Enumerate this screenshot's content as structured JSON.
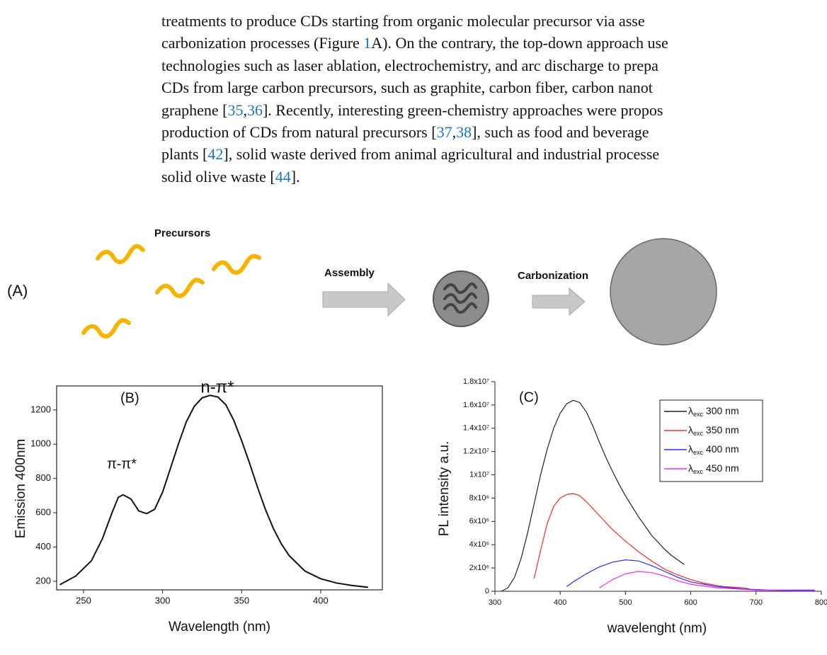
{
  "document": {
    "lines": [
      [
        "treatments to produce CDs starting from organic molecular precursor via asse"
      ],
      [
        "carbonization processes (Figure ",
        "1",
        "A). On the contrary, the top-down approach use"
      ],
      [
        "technologies such as laser ablation, electrochemistry, and arc discharge to prepa"
      ],
      [
        "CDs from large carbon precursors, such as graphite, carbon fiber, carbon nanot"
      ],
      [
        "graphene [",
        "35",
        ",",
        "36",
        "]. Recently, interesting green-chemistry approaches were propos"
      ],
      [
        "production of CDs from natural precursors [",
        "37",
        ",",
        "38",
        "], such as food and beverage"
      ],
      [
        "plants [",
        "42",
        "], solid waste derived from animal agricultural and industrial processe"
      ],
      [
        "solid olive waste [",
        "44",
        "]."
      ]
    ]
  },
  "diagram": {
    "panel": "(A)",
    "precursors": "Precursors",
    "assembly": "Assembly",
    "carbonization": "Carbonization"
  },
  "chart_data": [
    {
      "type": "line",
      "panel": "(B)",
      "xlabel": "Wavelength (nm)",
      "ylabel": "Emission 400nm",
      "annotations": [
        "n-π*",
        "π-π*"
      ],
      "xlim": [
        233,
        439
      ],
      "ylim": [
        150,
        1340
      ],
      "xticks": [
        250,
        300,
        350,
        400
      ],
      "yticks": [
        200,
        400,
        600,
        800,
        1000,
        1200
      ],
      "series": [
        {
          "color": "#111111",
          "x": [
            235,
            245,
            255,
            262,
            268,
            272,
            275,
            280,
            285,
            290,
            295,
            300,
            305,
            310,
            315,
            320,
            325,
            330,
            335,
            340,
            345,
            350,
            355,
            360,
            365,
            370,
            375,
            380,
            390,
            400,
            410,
            420,
            430
          ],
          "values": [
            180,
            230,
            320,
            450,
            600,
            690,
            705,
            680,
            610,
            595,
            620,
            720,
            860,
            1000,
            1130,
            1220,
            1270,
            1285,
            1275,
            1230,
            1140,
            1020,
            890,
            750,
            620,
            510,
            420,
            350,
            260,
            215,
            190,
            175,
            165
          ]
        }
      ]
    },
    {
      "type": "line",
      "panel": "(C)",
      "xlabel": "wavelenght (nm)",
      "ylabel": "PL intensity a.u.",
      "xlim": [
        300,
        800
      ],
      "ylim": [
        0,
        18000000
      ],
      "xticks": [
        300,
        400,
        500,
        600,
        700,
        800
      ],
      "yticks": [
        0,
        {
          "value": 2000000,
          "label": "2x10⁶"
        },
        {
          "value": 4000000,
          "label": "4x10⁶"
        },
        {
          "value": 6000000,
          "label": "6x10⁶"
        },
        {
          "value": 8000000,
          "label": "8x10⁶"
        },
        {
          "value": 10000000,
          "label": "1x10⁷"
        },
        {
          "value": 12000000,
          "label": "1.2x10⁷"
        },
        {
          "value": 14000000,
          "label": "1.4x10⁷"
        },
        {
          "value": 16000000,
          "label": "1.6x10⁷"
        },
        {
          "value": 18000000,
          "label": "1.8x10⁷"
        }
      ],
      "legend": "top-right",
      "series": [
        {
          "name": "λexc 300 nm",
          "color": "#222222",
          "x": [
            310,
            320,
            330,
            340,
            350,
            360,
            370,
            380,
            390,
            400,
            410,
            420,
            430,
            440,
            450,
            460,
            470,
            480,
            490,
            500,
            510,
            520,
            530,
            540,
            550,
            560,
            570,
            580,
            590
          ],
          "values": [
            0,
            300000,
            1200000,
            2800000,
            5000000,
            7500000,
            10000000,
            12200000,
            14000000,
            15300000,
            16100000,
            16400000,
            16200000,
            15400000,
            14200000,
            12800000,
            11500000,
            10300000,
            9200000,
            8200000,
            7300000,
            6400000,
            5600000,
            4800000,
            4200000,
            3600000,
            3100000,
            2700000,
            2300000
          ]
        },
        {
          "name": "λexc 350 nm",
          "color": "#ee2b2b",
          "x": [
            360,
            370,
            380,
            390,
            400,
            410,
            420,
            430,
            440,
            450,
            460,
            470,
            480,
            490,
            500,
            520,
            540,
            560,
            580,
            600,
            620,
            650,
            680,
            690
          ],
          "values": [
            1100000,
            3500000,
            5800000,
            7300000,
            8000000,
            8300000,
            8400000,
            8200000,
            7700000,
            7100000,
            6500000,
            5900000,
            5300000,
            4800000,
            4300000,
            3400000,
            2600000,
            1900000,
            1400000,
            1000000,
            700000,
            400000,
            300000,
            200000
          ]
        },
        {
          "name": "λexc 400 nm",
          "color": "#2b2bee",
          "x": [
            410,
            420,
            440,
            460,
            480,
            500,
            520,
            540,
            560,
            580,
            600,
            640,
            680,
            720,
            760,
            790
          ],
          "values": [
            400000,
            800000,
            1500000,
            2100000,
            2500000,
            2700000,
            2600000,
            2200000,
            1700000,
            1200000,
            800000,
            400000,
            200000,
            100000,
            100000,
            100000
          ]
        },
        {
          "name": "λexc 450 nm",
          "color": "#ee2bee",
          "x": [
            460,
            480,
            500,
            520,
            540,
            560,
            580,
            600,
            640,
            700,
            760,
            790
          ],
          "values": [
            300000,
            1000000,
            1500000,
            1700000,
            1600000,
            1300000,
            900000,
            600000,
            300000,
            100000,
            50000,
            50000
          ]
        }
      ]
    }
  ]
}
